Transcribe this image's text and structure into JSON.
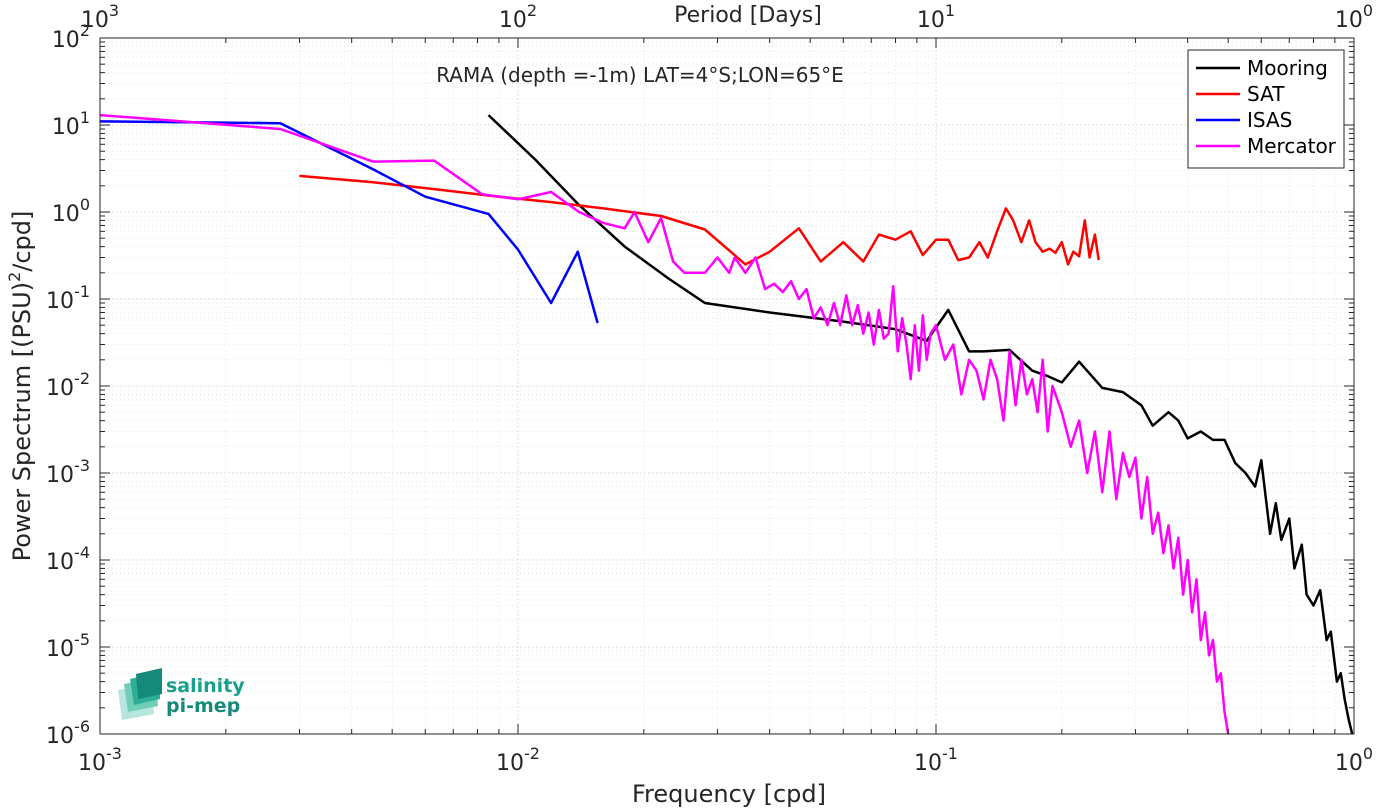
{
  "chart_data": {
    "type": "line",
    "title": "RAMA (depth =-1m) LAT=4°S;LON=65°E",
    "xlabel": "Frequency [cpd]",
    "ylabel_main": "Power Spectrum [(PSU)",
    "ylabel_sup": "2",
    "ylabel_tail": "/cpd]",
    "top_xlabel": "Period [Days]",
    "x_scale": "log",
    "y_scale": "log",
    "xlim": [
      0.001,
      1
    ],
    "ylim": [
      1e-06,
      100
    ],
    "grid": true,
    "legend_position": "top-right",
    "x_ticks": [
      {
        "value": 0.001,
        "base": "10",
        "exp": "-3"
      },
      {
        "value": 0.01,
        "base": "10",
        "exp": "-2"
      },
      {
        "value": 0.1,
        "base": "10",
        "exp": "-1"
      },
      {
        "value": 1,
        "base": "10",
        "exp": "0"
      }
    ],
    "y_ticks": [
      {
        "value": 1e-06,
        "base": "10",
        "exp": "-6"
      },
      {
        "value": 1e-05,
        "base": "10",
        "exp": "-5"
      },
      {
        "value": 0.0001,
        "base": "10",
        "exp": "-4"
      },
      {
        "value": 0.001,
        "base": "10",
        "exp": "-3"
      },
      {
        "value": 0.01,
        "base": "10",
        "exp": "-2"
      },
      {
        "value": 0.1,
        "base": "10",
        "exp": "-1"
      },
      {
        "value": 1,
        "base": "10",
        "exp": "0"
      },
      {
        "value": 10,
        "base": "10",
        "exp": "1"
      },
      {
        "value": 100,
        "base": "10",
        "exp": "2"
      }
    ],
    "top_ticks": [
      {
        "freq": 0.001,
        "base": "10",
        "exp": "3"
      },
      {
        "freq": 0.01,
        "base": "10",
        "exp": "2"
      },
      {
        "freq": 0.1,
        "base": "10",
        "exp": "1"
      },
      {
        "freq": 1,
        "base": "10",
        "exp": "0"
      }
    ],
    "series": [
      {
        "name": "Mooring",
        "color": "#000000",
        "x": [
          0.0085,
          0.011,
          0.014,
          0.018,
          0.023,
          0.028,
          0.04,
          0.06,
          0.08,
          0.095,
          0.107,
          0.12,
          0.13,
          0.15,
          0.17,
          0.185,
          0.2,
          0.22,
          0.25,
          0.28,
          0.31,
          0.33,
          0.36,
          0.38,
          0.4,
          0.43,
          0.46,
          0.49,
          0.52,
          0.55,
          0.58,
          0.6,
          0.63,
          0.65,
          0.67,
          0.7,
          0.72,
          0.75,
          0.77,
          0.8,
          0.83,
          0.86,
          0.88,
          0.91,
          0.93,
          0.95,
          0.97,
          0.99
        ],
        "y": [
          13,
          4,
          1.2,
          0.4,
          0.17,
          0.09,
          0.07,
          0.055,
          0.045,
          0.033,
          0.075,
          0.025,
          0.025,
          0.026,
          0.015,
          0.013,
          0.011,
          0.019,
          0.0095,
          0.0085,
          0.006,
          0.0035,
          0.005,
          0.004,
          0.0025,
          0.003,
          0.0024,
          0.0024,
          0.0013,
          0.001,
          0.0007,
          0.0014,
          0.0002,
          0.00045,
          0.00017,
          0.0003,
          8e-05,
          0.00015,
          4e-05,
          3e-05,
          4.5e-05,
          1.2e-05,
          1.5e-05,
          4e-06,
          5e-06,
          2.5e-06,
          1.5e-06,
          1e-06
        ]
      },
      {
        "name": "SAT",
        "color": "#ff0000",
        "x": [
          0.003,
          0.0045,
          0.0065,
          0.009,
          0.012,
          0.016,
          0.022,
          0.028,
          0.035,
          0.04,
          0.047,
          0.053,
          0.06,
          0.067,
          0.073,
          0.08,
          0.087,
          0.093,
          0.1,
          0.107,
          0.113,
          0.12,
          0.127,
          0.133,
          0.14,
          0.147,
          0.153,
          0.16,
          0.167,
          0.173,
          0.18,
          0.187,
          0.193,
          0.2,
          0.207,
          0.213,
          0.22,
          0.227,
          0.233,
          0.24,
          0.245
        ],
        "y": [
          2.6,
          2.2,
          1.8,
          1.5,
          1.3,
          1.1,
          0.9,
          0.63,
          0.25,
          0.35,
          0.65,
          0.27,
          0.45,
          0.27,
          0.55,
          0.48,
          0.6,
          0.32,
          0.48,
          0.48,
          0.28,
          0.3,
          0.45,
          0.3,
          0.6,
          1.1,
          0.8,
          0.45,
          0.8,
          0.45,
          0.35,
          0.38,
          0.34,
          0.45,
          0.25,
          0.35,
          0.31,
          0.8,
          0.3,
          0.55,
          0.28
        ]
      },
      {
        "name": "ISAS",
        "color": "#0000ff",
        "x": [
          0.001,
          0.0027,
          0.0045,
          0.006,
          0.0085,
          0.01,
          0.012,
          0.0139,
          0.0155
        ],
        "y": [
          11,
          10.5,
          3.1,
          1.5,
          0.95,
          0.37,
          0.09,
          0.35,
          0.053
        ]
      },
      {
        "name": "Mercator",
        "color": "#ff00ff",
        "x": [
          0.001,
          0.0027,
          0.0045,
          0.0063,
          0.0082,
          0.01,
          0.012,
          0.014,
          0.016,
          0.018,
          0.019,
          0.0205,
          0.022,
          0.0235,
          0.025,
          0.028,
          0.03,
          0.032,
          0.033,
          0.035,
          0.037,
          0.039,
          0.041,
          0.043,
          0.045,
          0.047,
          0.049,
          0.051,
          0.053,
          0.055,
          0.057,
          0.059,
          0.061,
          0.063,
          0.065,
          0.067,
          0.069,
          0.071,
          0.073,
          0.075,
          0.077,
          0.079,
          0.081,
          0.083,
          0.085,
          0.087,
          0.089,
          0.091,
          0.093,
          0.095,
          0.097,
          0.1,
          0.105,
          0.11,
          0.115,
          0.12,
          0.125,
          0.13,
          0.135,
          0.14,
          0.145,
          0.15,
          0.155,
          0.16,
          0.165,
          0.17,
          0.175,
          0.18,
          0.185,
          0.19,
          0.2,
          0.21,
          0.22,
          0.23,
          0.24,
          0.25,
          0.26,
          0.27,
          0.28,
          0.29,
          0.3,
          0.31,
          0.32,
          0.33,
          0.34,
          0.35,
          0.36,
          0.37,
          0.38,
          0.39,
          0.4,
          0.41,
          0.42,
          0.43,
          0.44,
          0.45,
          0.46,
          0.47,
          0.48,
          0.49,
          0.5
        ],
        "y": [
          13,
          9,
          3.8,
          3.9,
          1.6,
          1.4,
          1.7,
          1.0,
          0.75,
          0.65,
          1.0,
          0.45,
          0.85,
          0.27,
          0.2,
          0.2,
          0.3,
          0.2,
          0.3,
          0.2,
          0.3,
          0.13,
          0.15,
          0.12,
          0.16,
          0.1,
          0.13,
          0.06,
          0.08,
          0.05,
          0.09,
          0.05,
          0.11,
          0.05,
          0.085,
          0.04,
          0.07,
          0.03,
          0.075,
          0.035,
          0.04,
          0.14,
          0.025,
          0.06,
          0.03,
          0.012,
          0.05,
          0.015,
          0.065,
          0.02,
          0.04,
          0.05,
          0.02,
          0.03,
          0.008,
          0.02,
          0.015,
          0.007,
          0.02,
          0.012,
          0.004,
          0.025,
          0.006,
          0.02,
          0.008,
          0.012,
          0.005,
          0.02,
          0.003,
          0.01,
          0.005,
          0.002,
          0.004,
          0.001,
          0.003,
          0.0006,
          0.003,
          0.0005,
          0.0017,
          0.0009,
          0.0015,
          0.0003,
          0.0009,
          0.0002,
          0.00035,
          0.00012,
          0.00025,
          8e-05,
          0.00018,
          4e-05,
          0.0001,
          2.5e-05,
          6e-05,
          1.2e-05,
          2.5e-05,
          8e-06,
          1.2e-05,
          4e-06,
          5e-06,
          1.8e-06,
          1e-06
        ]
      }
    ],
    "logo": {
      "line1": "salinity",
      "line2": "pi-mep",
      "color": "#17a08c"
    }
  }
}
